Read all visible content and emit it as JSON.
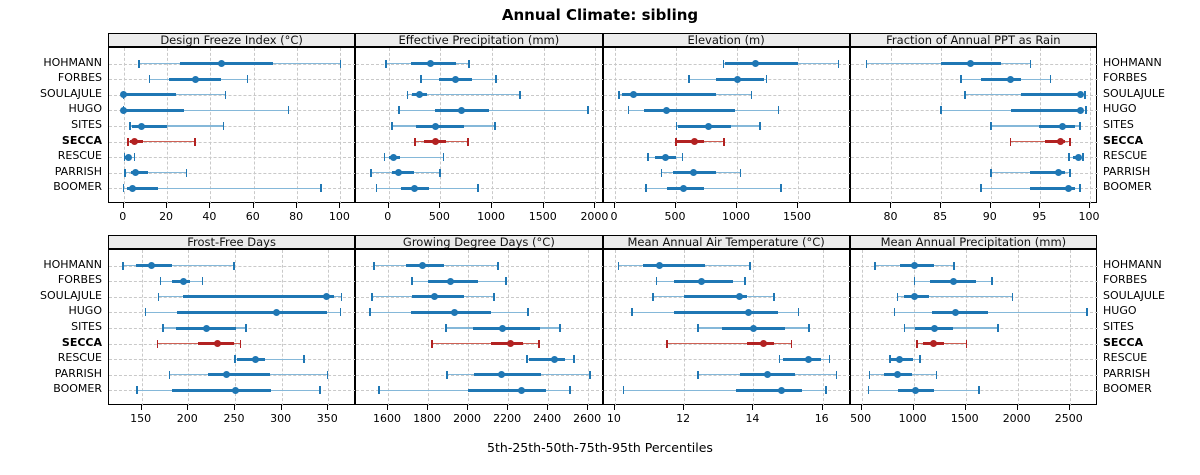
{
  "title": "Annual Climate: sibling",
  "caption": "5th-25th-50th-75th-95th Percentiles",
  "stations": [
    "HOHMANN",
    "FORBES",
    "SOULAJULE",
    "HUGO",
    "SITES",
    "SECCA",
    "RESCUE",
    "PARRISH",
    "BOOMER"
  ],
  "highlight_station": "SECCA",
  "colors": {
    "series": "#1f77b4",
    "series_light": "#85b8d9",
    "highlight": "#b22222",
    "highlight_light": "#cd6155",
    "strip_bg": "#ececec",
    "grid": "#c9c9c9"
  },
  "chart_data": [
    {
      "type": "interval-dotplot",
      "title": "Design Freeze Index (°C)",
      "xlim": [
        -6.8,
        107.3
      ],
      "ticks": [
        0,
        20,
        40,
        60,
        80,
        100
      ],
      "percentile_labels": [
        "5th",
        "25th",
        "50th",
        "75th",
        "95th"
      ],
      "series": [
        [
          7,
          26,
          45,
          69,
          100
        ],
        [
          12,
          21,
          33,
          45,
          57
        ],
        [
          0,
          0,
          0,
          24,
          47
        ],
        [
          0,
          0,
          0,
          28,
          76
        ],
        [
          3,
          4,
          8,
          20,
          46
        ],
        [
          2,
          3,
          5,
          9,
          33
        ],
        [
          0.3,
          0.8,
          2,
          3.5,
          5
        ],
        [
          0.6,
          3.5,
          5.5,
          11,
          29
        ],
        [
          0,
          1.5,
          4,
          16,
          91
        ]
      ]
    },
    {
      "type": "interval-dotplot",
      "title": "Effective Precipitation (mm)",
      "xlim": [
        -314,
        2078
      ],
      "ticks": [
        0,
        500,
        1000,
        1500,
        2000
      ],
      "series": [
        [
          -25,
          220,
          405,
          655,
          775
        ],
        [
          310,
          490,
          650,
          810,
          1040
        ],
        [
          180,
          230,
          300,
          375,
          1270
        ],
        [
          100,
          450,
          700,
          975,
          1930
        ],
        [
          30,
          260,
          450,
          730,
          1030
        ],
        [
          255,
          345,
          450,
          550,
          765
        ],
        [
          -40,
          0,
          50,
          105,
          530
        ],
        [
          -170,
          30,
          90,
          245,
          495
        ],
        [
          -120,
          120,
          245,
          390,
          865
        ]
      ]
    },
    {
      "type": "interval-dotplot",
      "title": "Elevation (m)",
      "xlim": [
        -94,
        1932
      ],
      "ticks": [
        0,
        500,
        1000,
        1500
      ],
      "series": [
        [
          890,
          900,
          1150,
          1500,
          1830
        ],
        [
          605,
          830,
          1000,
          1225,
          1240
        ],
        [
          35,
          55,
          150,
          830,
          1120
        ],
        [
          110,
          240,
          423,
          985,
          1340
        ],
        [
          505,
          515,
          765,
          950,
          1190
        ],
        [
          500,
          510,
          650,
          730,
          895
        ],
        [
          270,
          325,
          415,
          500,
          555
        ],
        [
          380,
          475,
          645,
          830,
          1030
        ],
        [
          255,
          430,
          560,
          730,
          1360
        ]
      ]
    },
    {
      "type": "interval-dotplot",
      "title": "Fraction of Annual PPT as Rain",
      "xlim": [
        75.9,
        100.8
      ],
      "ticks": [
        80,
        85,
        90,
        95,
        100
      ],
      "series": [
        [
          77.5,
          85,
          88,
          91,
          94
        ],
        [
          87,
          89,
          92,
          93,
          96
        ],
        [
          87.4,
          93,
          99,
          99.3,
          99.5
        ],
        [
          85,
          92,
          99,
          99.3,
          99.6
        ],
        [
          90,
          94.9,
          97.2,
          98.5,
          99
        ],
        [
          92,
          95.5,
          97,
          97.5,
          98
        ],
        [
          97.9,
          98.3,
          98.8,
          99.1,
          99.3
        ],
        [
          90,
          94,
          96.8,
          97.5,
          98
        ],
        [
          89,
          94,
          97.8,
          98.5,
          99
        ]
      ]
    },
    {
      "type": "interval-dotplot",
      "title": "Frost-Free Days",
      "xlim": [
        115,
        380
      ],
      "ticks": [
        150,
        200,
        250,
        300,
        350
      ],
      "series": [
        [
          130,
          144,
          161,
          182,
          249
        ],
        [
          170,
          183,
          195,
          202,
          215
        ],
        [
          168,
          194,
          348,
          356,
          364
        ],
        [
          154,
          188,
          294,
          349,
          363
        ],
        [
          173,
          187,
          219,
          251,
          262
        ],
        [
          167,
          210,
          231,
          249,
          256
        ],
        [
          250,
          252,
          272,
          282,
          324
        ],
        [
          180,
          221,
          241,
          288,
          349
        ],
        [
          145,
          182,
          251,
          289,
          341
        ]
      ]
    },
    {
      "type": "interval-dotplot",
      "title": "Growing Degree Days (°C)",
      "xlim": [
        1441,
        2677
      ],
      "ticks": [
        1600,
        1800,
        2000,
        2200,
        2400,
        2600
      ],
      "series": [
        [
          1530,
          1690,
          1770,
          1880,
          2150
        ],
        [
          1720,
          1800,
          1910,
          2050,
          2190
        ],
        [
          1520,
          1720,
          1830,
          1980,
          2130
        ],
        [
          1510,
          1715,
          1930,
          2115,
          2300
        ],
        [
          1890,
          2025,
          2170,
          2360,
          2460
        ],
        [
          1820,
          2115,
          2210,
          2275,
          2355
        ],
        [
          2295,
          2305,
          2433,
          2483,
          2530
        ],
        [
          1895,
          2030,
          2165,
          2365,
          2610
        ],
        [
          1555,
          2000,
          2265,
          2390,
          2510
        ]
      ]
    },
    {
      "type": "interval-dotplot",
      "title": "Mean Annual Air Temperature (°C)",
      "xlim": [
        9.67,
        16.81
      ],
      "ticks": [
        10,
        12,
        14,
        16
      ],
      "series": [
        [
          10.1,
          10.8,
          11.3,
          12.6,
          13.9
        ],
        [
          11.2,
          11.7,
          12.5,
          13.4,
          13.75
        ],
        [
          11.1,
          12.0,
          13.6,
          13.8,
          14.6
        ],
        [
          10.5,
          11.7,
          13.85,
          14.7,
          15.3
        ],
        [
          12.4,
          13.1,
          14.0,
          14.9,
          15.6
        ],
        [
          11.5,
          13.8,
          14.3,
          14.6,
          15.1
        ],
        [
          14.75,
          14.85,
          15.6,
          15.95,
          16.2
        ],
        [
          12.4,
          13.6,
          14.4,
          15.2,
          16.4
        ],
        [
          10.25,
          13.5,
          14.8,
          15.4,
          16.1
        ]
      ]
    },
    {
      "type": "interval-dotplot",
      "title": "Mean Annual Precipitation (mm)",
      "xlim": [
        395,
        2772
      ],
      "ticks": [
        500,
        1000,
        1500,
        2000,
        2500
      ],
      "series": [
        [
          630,
          870,
          1010,
          1200,
          1390
        ],
        [
          1010,
          1160,
          1380,
          1600,
          1755
        ],
        [
          845,
          910,
          1005,
          1150,
          1950
        ],
        [
          815,
          1175,
          1405,
          1710,
          2665
        ],
        [
          910,
          1015,
          1200,
          1375,
          1810
        ],
        [
          1030,
          1085,
          1190,
          1295,
          1510
        ],
        [
          770,
          782,
          860,
          990,
          1060
        ],
        [
          575,
          710,
          845,
          985,
          1220
        ],
        [
          565,
          845,
          1015,
          1200,
          1630
        ]
      ]
    }
  ]
}
